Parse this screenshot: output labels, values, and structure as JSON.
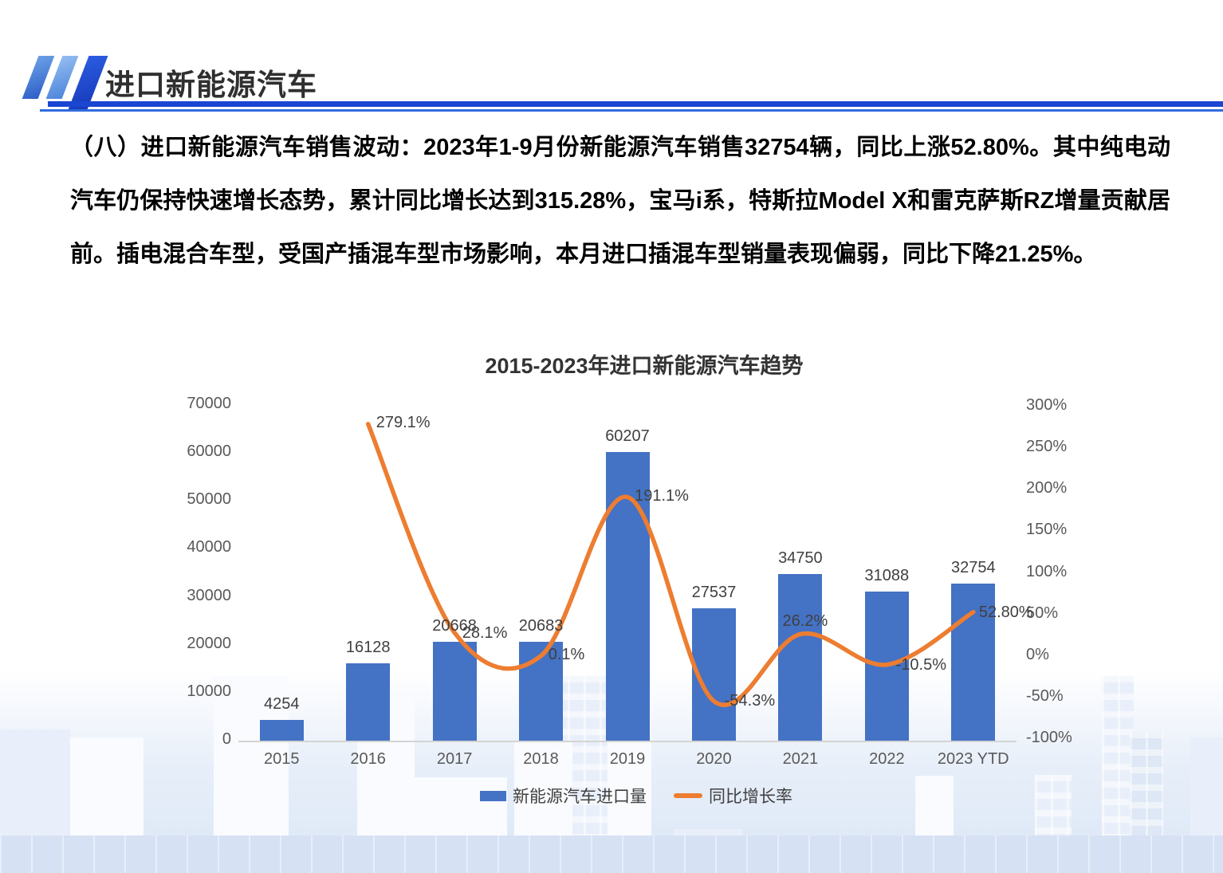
{
  "header": {
    "title": "进口新能源汽车"
  },
  "paragraph": {
    "text": "（八）进口新能源汽车销售波动：2023年1-9月份新能源汽车销售32754辆，同比上涨52.80%。其中纯电动汽车仍保持快速增长态势，累计同比增长达到315.28%，宝马i系，特斯拉Model X和雷克萨斯RZ增量贡献居前。插电混合车型，受国产插混车型市场影响，本月进口插混车型销量表现偏弱，同比下降21.25%。"
  },
  "chart_data": {
    "type": "bar",
    "title": "2015-2023年进口新能源汽车趋势",
    "categories": [
      "2015",
      "2016",
      "2017",
      "2018",
      "2019",
      "2020",
      "2021",
      "2022",
      "2023 YTD"
    ],
    "series": [
      {
        "name": "新能源汽车进口量",
        "type": "bar",
        "color": "#4472C4",
        "values": [
          4254,
          16128,
          20668,
          20683,
          60207,
          27537,
          34750,
          31088,
          32754
        ]
      },
      {
        "name": "同比增长率",
        "type": "line",
        "color": "#ED7D31",
        "values": [
          null,
          279.1,
          28.1,
          0.1,
          191.1,
          -54.3,
          26.2,
          -10.5,
          52.8
        ],
        "labels": [
          null,
          "279.1%",
          "28.1%",
          "0.1%",
          "191.1%",
          "-54.3%",
          "26.2%",
          "-10.5%",
          "52.80%"
        ],
        "label_offsets": [
          null,
          [
            44,
            0
          ],
          [
            38,
            3
          ],
          [
            32,
            0
          ],
          [
            43,
            0
          ],
          [
            45,
            2
          ],
          [
            6,
            -14
          ],
          [
            43,
            2
          ],
          [
            41,
            2
          ]
        ]
      }
    ],
    "left_axis": {
      "ticks": [
        "0",
        "10000",
        "20000",
        "30000",
        "40000",
        "50000",
        "60000",
        "70000"
      ],
      "min": 0,
      "max": 70000
    },
    "right_axis": {
      "ticks": [
        "-100%",
        "-50%",
        "0%",
        "50%",
        "100%",
        "150%",
        "200%",
        "250%",
        "300%"
      ],
      "min": -100,
      "max": 300
    },
    "legend": {
      "position": "bottom",
      "items": [
        "新能源汽车进口量",
        "同比增长率"
      ]
    },
    "grid": false
  }
}
